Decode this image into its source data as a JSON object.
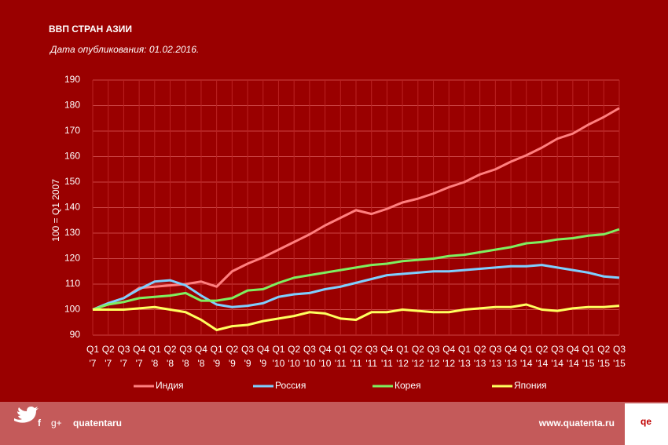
{
  "chart_data": {
    "type": "line",
    "title": "ВВП СТРАН АЗИИ",
    "subtitle": "Дата опубликования:  01.02.2016.",
    "y_label": "100 = Q1 2007",
    "categories": [
      [
        "Q1",
        "'7"
      ],
      [
        "Q2",
        "'7"
      ],
      [
        "Q3",
        "'7"
      ],
      [
        "Q4",
        "'7"
      ],
      [
        "Q1",
        "'8"
      ],
      [
        "Q2",
        "'8"
      ],
      [
        "Q3",
        "'8"
      ],
      [
        "Q4",
        "'8"
      ],
      [
        "Q1",
        "'9"
      ],
      [
        "Q2",
        "'9"
      ],
      [
        "Q3",
        "'9"
      ],
      [
        "Q4",
        "'9"
      ],
      [
        "Q1",
        "'10"
      ],
      [
        "Q2",
        "'10"
      ],
      [
        "Q3",
        "'10"
      ],
      [
        "Q4",
        "'10"
      ],
      [
        "Q1",
        "'11"
      ],
      [
        "Q2",
        "'11"
      ],
      [
        "Q3",
        "'11"
      ],
      [
        "Q4",
        "'11"
      ],
      [
        "Q1",
        "'12"
      ],
      [
        "Q2",
        "'12"
      ],
      [
        "Q3",
        "'12"
      ],
      [
        "Q4",
        "'12"
      ],
      [
        "Q1",
        "'13"
      ],
      [
        "Q2",
        "'13"
      ],
      [
        "Q3",
        "'13"
      ],
      [
        "Q4",
        "'13"
      ],
      [
        "Q1",
        "'14"
      ],
      [
        "Q2",
        "'14"
      ],
      [
        "Q3",
        "'14"
      ],
      [
        "Q4",
        "'14"
      ],
      [
        "Q1",
        "'15"
      ],
      [
        "Q2",
        "'15"
      ],
      [
        "Q3",
        "'15"
      ]
    ],
    "series": [
      {
        "name": "Индия",
        "color": "#ff7f7f",
        "values": [
          100,
          102.5,
          104.5,
          108.5,
          109,
          109.5,
          110,
          111,
          109,
          115,
          118,
          120.5,
          123.5,
          126.5,
          129.5,
          133,
          136,
          139,
          137.5,
          139.5,
          142,
          143.5,
          145.5,
          148,
          150,
          153,
          155,
          158,
          160.5,
          163.5,
          167,
          169,
          172.5,
          175.5,
          179
        ]
      },
      {
        "name": "Россия",
        "color": "#7fcfff",
        "values": [
          100,
          102.5,
          104.5,
          108,
          111,
          111.5,
          109.5,
          105.5,
          102,
          101,
          101.5,
          102.5,
          105,
          106,
          106.5,
          108,
          109,
          110.5,
          112,
          113.5,
          114,
          114.5,
          115,
          115,
          115.5,
          116,
          116.5,
          117,
          117,
          117.5,
          116.5,
          115.5,
          114.5,
          113,
          112.5
        ]
      },
      {
        "name": "Корея",
        "color": "#7fef5f",
        "values": [
          100,
          102,
          103,
          104.5,
          105,
          105.5,
          106.5,
          103.5,
          103.5,
          104.5,
          107.5,
          108,
          110.5,
          112.5,
          113.5,
          114.5,
          115.5,
          116.5,
          117.5,
          118,
          119,
          119.5,
          120,
          121,
          121.5,
          122.5,
          123.5,
          124.5,
          126,
          126.5,
          127.5,
          128,
          129,
          129.5,
          131.5
        ]
      },
      {
        "name": "Япония",
        "color": "#ffff5f",
        "values": [
          100,
          100,
          100,
          100.5,
          101,
          100,
          99,
          96,
          92,
          93.5,
          94,
          95.5,
          96.5,
          97.5,
          99,
          98.5,
          96.5,
          96,
          99,
          99,
          100,
          99.5,
          99,
          99,
          100,
          100.5,
          101,
          101,
          102,
          100,
          99.5,
          100.5,
          101,
          101,
          101.5
        ]
      }
    ],
    "ylim": [
      90,
      190
    ],
    "yticks": [
      90,
      100,
      110,
      120,
      130,
      140,
      150,
      160,
      170,
      180,
      190
    ],
    "grid": true
  },
  "footer": {
    "icons": [
      "f",
      "g+"
    ],
    "social": "quatentaru",
    "url": "www.quatenta.ru",
    "logo": "qe"
  }
}
